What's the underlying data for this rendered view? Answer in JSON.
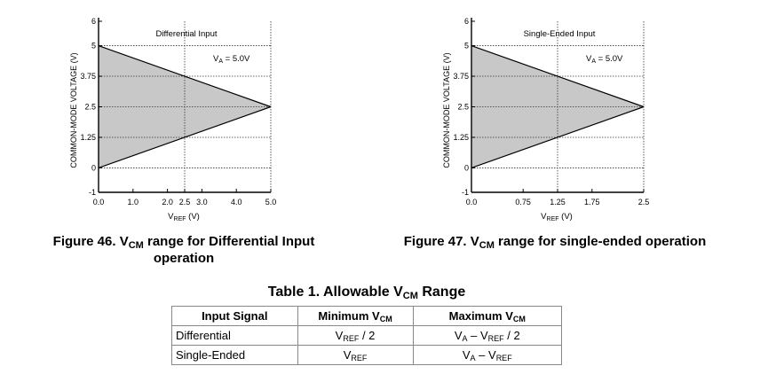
{
  "chart_data": [
    {
      "type": "area",
      "title": "Differential Input",
      "annotation": {
        "main": "V",
        "sub": "A",
        "rest": " = 5.0V"
      },
      "ylabel": "COMMON-MODE VOLTAGE (V)",
      "xlabel": {
        "main": "V",
        "sub": "REF",
        "rest": " (V)"
      },
      "xlim": [
        0,
        5
      ],
      "ylim": [
        -1,
        6
      ],
      "x_ticks": [
        {
          "value": 0,
          "label": "0.0"
        },
        {
          "value": 1,
          "label": "1.0"
        },
        {
          "value": 2,
          "label": "2.0"
        },
        {
          "value": 2.5,
          "label": "2.5"
        },
        {
          "value": 3,
          "label": "3.0"
        },
        {
          "value": 4,
          "label": "4.0"
        },
        {
          "value": 5,
          "label": "5.0"
        }
      ],
      "y_ticks": [
        {
          "value": 6,
          "label": "6"
        },
        {
          "value": 5,
          "label": "5"
        },
        {
          "value": 3.75,
          "label": "3.75"
        },
        {
          "value": 2.5,
          "label": "2.5"
        },
        {
          "value": 1.25,
          "label": "1.25"
        },
        {
          "value": 0,
          "label": "0"
        },
        {
          "value": -1,
          "label": "-1"
        }
      ],
      "grid_x": [
        2.5,
        5
      ],
      "grid_y": [
        5,
        3.75,
        2.5,
        1.25,
        0
      ],
      "series": [
        {
          "values": [
            [
              0,
              5
            ],
            [
              5,
              2.5
            ]
          ]
        },
        {
          "values": [
            [
              0,
              0
            ],
            [
              5,
              2.5
            ]
          ]
        }
      ],
      "fill_color": "#c8c8c8"
    },
    {
      "type": "area",
      "title": "Single-Ended Input",
      "annotation": {
        "main": "V",
        "sub": "A",
        "rest": " = 5.0V"
      },
      "ylabel": "COMMON-MODE VOLTAGE (V)",
      "xlabel": {
        "main": "V",
        "sub": "REF",
        "rest": " (V)"
      },
      "xlim": [
        0,
        2.5
      ],
      "ylim": [
        -1,
        6
      ],
      "x_ticks": [
        {
          "value": 0,
          "label": "0.0"
        },
        {
          "value": 0.75,
          "label": "0.75"
        },
        {
          "value": 1.25,
          "label": "1.25"
        },
        {
          "value": 1.75,
          "label": "1.75"
        },
        {
          "value": 2.5,
          "label": "2.5"
        }
      ],
      "y_ticks": [
        {
          "value": 6,
          "label": "6"
        },
        {
          "value": 5,
          "label": "5"
        },
        {
          "value": 3.75,
          "label": "3.75"
        },
        {
          "value": 2.5,
          "label": "2.5"
        },
        {
          "value": 1.25,
          "label": "1.25"
        },
        {
          "value": 0,
          "label": "0"
        },
        {
          "value": -1,
          "label": "-1"
        }
      ],
      "grid_x": [
        1.25,
        2.5
      ],
      "grid_y": [
        5,
        3.75,
        2.5,
        1.25,
        0
      ],
      "series": [
        {
          "values": [
            [
              0,
              5
            ],
            [
              2.5,
              2.5
            ]
          ]
        },
        {
          "values": [
            [
              0,
              0
            ],
            [
              2.5,
              2.5
            ]
          ]
        }
      ],
      "fill_color": "#c8c8c8"
    }
  ],
  "captions": {
    "fig46": {
      "prefix": "Figure 46. V",
      "sub": "CM",
      "suffix": " range for Differential Input",
      "line2": "operation"
    },
    "fig47": {
      "prefix": "Figure 47. V",
      "sub": "CM",
      "suffix": " range for single-ended operation"
    }
  },
  "table": {
    "title": {
      "prefix": "Table 1. Allowable V",
      "sub": "CM",
      "suffix": " Range"
    },
    "headers": {
      "signal": "Input Signal",
      "min": {
        "main": "Minimum V",
        "sub": "CM"
      },
      "max": {
        "main": "Maximum V",
        "sub": "CM"
      }
    },
    "rows": [
      {
        "signal": "Differential",
        "min": {
          "a": "V",
          "a_sub": "REF",
          "rest": " / 2"
        },
        "max": {
          "a": "V",
          "a_sub": "A",
          "mid": " – V",
          "b_sub": "REF",
          "rest": " / 2"
        }
      },
      {
        "signal": "Single-Ended",
        "min": {
          "a": "V",
          "a_sub": "REF",
          "rest": ""
        },
        "max": {
          "a": "V",
          "a_sub": "A",
          "mid": " – V",
          "b_sub": "REF",
          "rest": ""
        }
      }
    ]
  }
}
